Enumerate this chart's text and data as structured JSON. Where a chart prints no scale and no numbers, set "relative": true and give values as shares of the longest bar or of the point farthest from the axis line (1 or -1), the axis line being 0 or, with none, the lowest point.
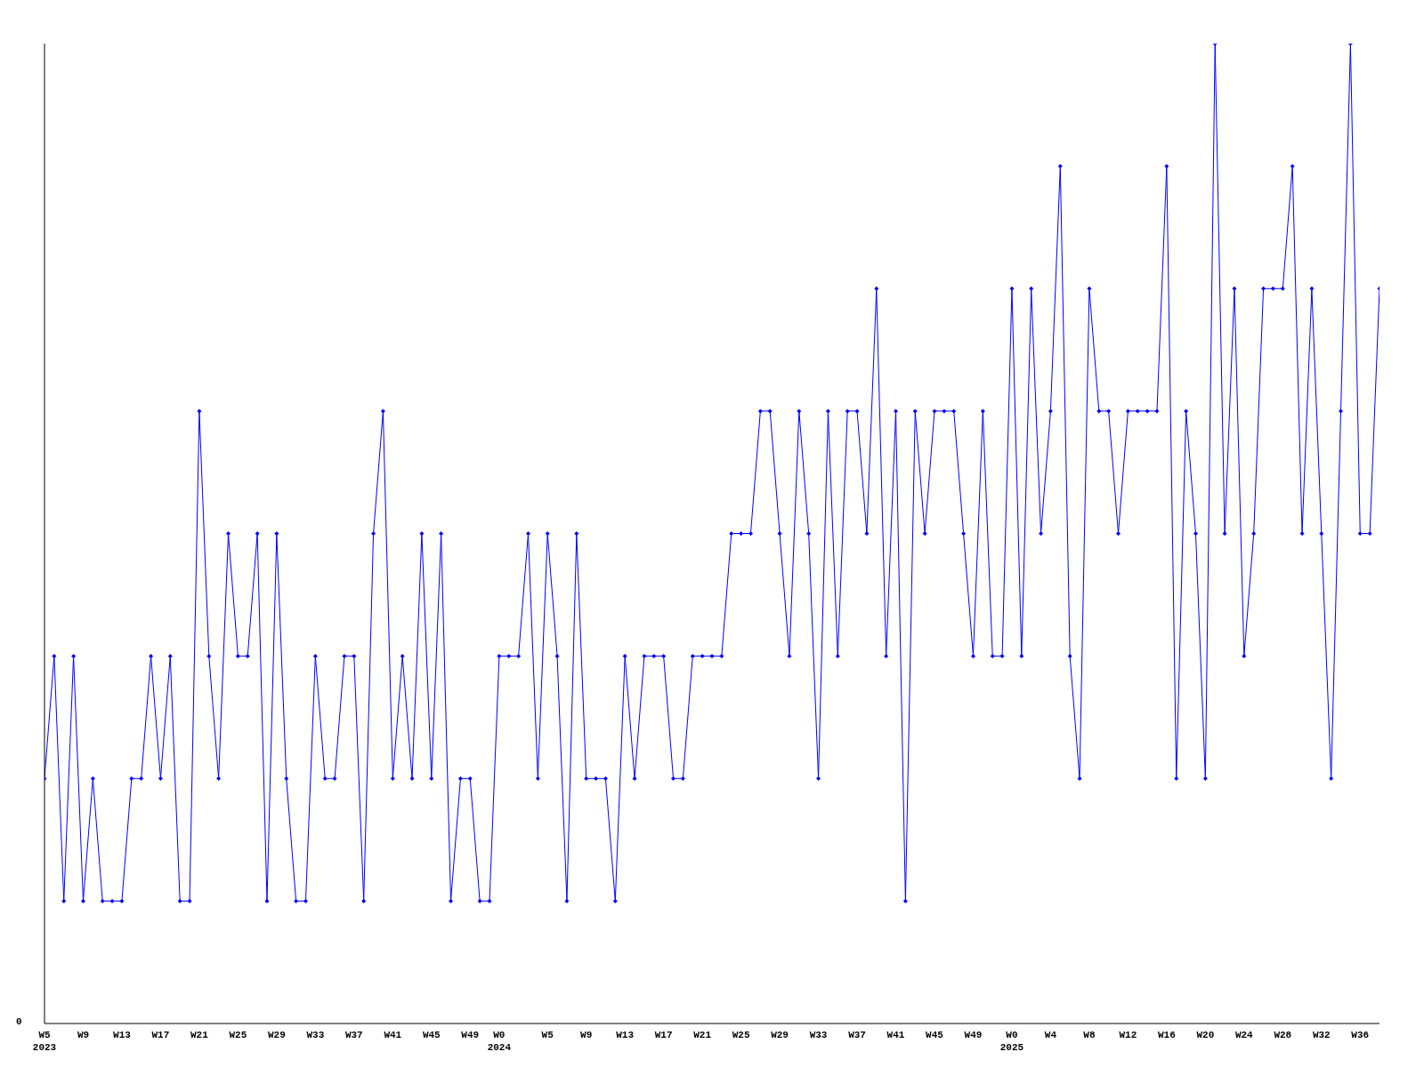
{
  "chart_data": {
    "type": "line",
    "relative": true,
    "annotations": [
      "0"
    ],
    "grid": false,
    "legend": false,
    "marker": "diamond",
    "line_style": "solid",
    "categories": [
      "W5\n2023",
      null,
      null,
      null,
      "W9",
      null,
      null,
      null,
      "W13",
      null,
      null,
      null,
      "W17",
      null,
      null,
      null,
      "W21",
      null,
      null,
      null,
      "W25",
      null,
      null,
      null,
      "W29",
      null,
      null,
      null,
      "W33",
      null,
      null,
      null,
      "W37",
      null,
      null,
      null,
      "W41",
      null,
      null,
      null,
      "W45",
      null,
      null,
      null,
      "W49",
      null,
      null,
      "W0\n2024",
      null,
      null,
      null,
      null,
      "W5",
      null,
      null,
      null,
      "W9",
      null,
      null,
      null,
      "W13",
      null,
      null,
      null,
      "W17",
      null,
      null,
      null,
      "W21",
      null,
      null,
      null,
      "W25",
      null,
      null,
      null,
      "W29",
      null,
      null,
      null,
      "W33",
      null,
      null,
      null,
      "W37",
      null,
      null,
      null,
      "W41",
      null,
      null,
      null,
      "W45",
      null,
      null,
      null,
      "W49",
      null,
      null,
      null,
      "W0\n2025",
      null,
      null,
      null,
      "W4",
      null,
      null,
      null,
      "W8",
      null,
      null,
      null,
      "W12",
      null,
      null,
      null,
      "W16",
      null,
      null,
      null,
      "W20",
      null,
      null,
      null,
      "W24",
      null,
      null,
      null,
      "W28",
      null,
      null,
      null,
      "W32",
      null,
      null,
      null,
      "W36",
      null,
      null
    ],
    "series": [
      {
        "color": "#0000ff",
        "values": [
          0.25,
          0.375,
          0.125,
          0.375,
          0.125,
          0.25,
          0.125,
          0.125,
          0.125,
          0.25,
          0.25,
          0.375,
          0.25,
          0.375,
          0.125,
          0.125,
          0.625,
          0.375,
          0.25,
          0.5,
          0.375,
          0.375,
          0.5,
          0.125,
          0.5,
          0.25,
          0.125,
          0.125,
          0.375,
          0.25,
          0.25,
          0.375,
          0.375,
          0.125,
          0.5,
          0.625,
          0.25,
          0.375,
          0.25,
          0.5,
          0.25,
          0.5,
          0.125,
          0.25,
          0.25,
          0.125,
          0.125,
          0.375,
          0.375,
          0.375,
          0.5,
          0.25,
          0.5,
          0.375,
          0.125,
          0.5,
          0.25,
          0.25,
          0.25,
          0.125,
          0.375,
          0.25,
          0.375,
          0.375,
          0.375,
          0.25,
          0.25,
          0.375,
          0.375,
          0.375,
          0.375,
          0.5,
          0.5,
          0.5,
          0.625,
          0.625,
          0.5,
          0.375,
          0.625,
          0.5,
          0.25,
          0.625,
          0.375,
          0.625,
          0.625,
          0.5,
          0.75,
          0.375,
          0.625,
          0.125,
          0.625,
          0.5,
          0.625,
          0.625,
          0.625,
          0.5,
          0.375,
          0.625,
          0.375,
          0.375,
          0.75,
          0.375,
          0.75,
          0.5,
          0.625,
          0.875,
          0.375,
          0.25,
          0.75,
          0.625,
          0.625,
          0.5,
          0.625,
          0.625,
          0.625,
          0.625,
          0.875,
          0.25,
          0.625,
          0.5,
          0.25,
          1,
          0.5,
          0.75,
          0.375,
          0.5,
          0.75,
          0.75,
          0.75,
          0.875,
          0.5,
          0.75,
          0.5,
          0.25,
          0.625,
          1,
          0.5,
          0.5,
          0.75
        ]
      }
    ]
  }
}
